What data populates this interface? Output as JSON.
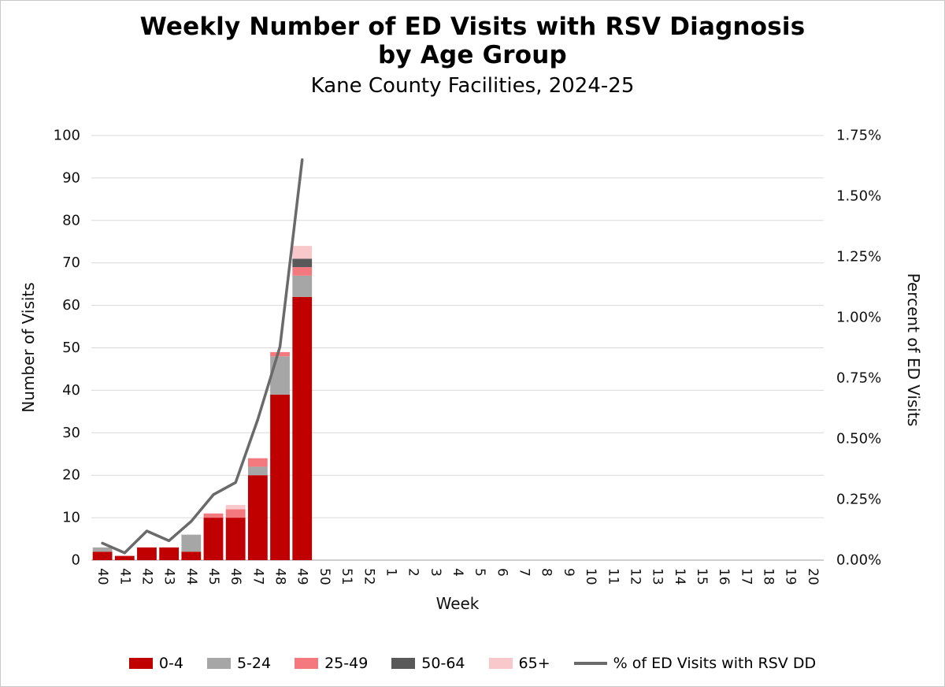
{
  "title": {
    "line1": "Weekly Number of ED Visits with RSV Diagnosis",
    "line2": "by Age Group",
    "subtitle": "Kane County Facilities, 2024-25"
  },
  "axes": {
    "x_label": "Week",
    "y_left_label": "Number of Visits",
    "y_right_label": "Percent of ED Visits"
  },
  "chart_data": {
    "type": "bar",
    "stacked": true,
    "grid": true,
    "legend_position": "bottom",
    "categories": [
      "40",
      "41",
      "42",
      "43",
      "44",
      "45",
      "46",
      "47",
      "48",
      "49",
      "50",
      "51",
      "52",
      "1",
      "2",
      "3",
      "4",
      "5",
      "6",
      "7",
      "8",
      "9",
      "10",
      "11",
      "12",
      "13",
      "14",
      "15",
      "16",
      "17",
      "18",
      "19",
      "20"
    ],
    "series": [
      {
        "name": "0-4",
        "color": "#C00000",
        "values": [
          2,
          1,
          3,
          3,
          2,
          10,
          10,
          20,
          39,
          62,
          0,
          0,
          0,
          0,
          0,
          0,
          0,
          0,
          0,
          0,
          0,
          0,
          0,
          0,
          0,
          0,
          0,
          0,
          0,
          0,
          0,
          0,
          0
        ]
      },
      {
        "name": "5-24",
        "color": "#A6A6A6",
        "values": [
          1,
          0,
          0,
          0,
          4,
          0,
          0,
          2,
          9,
          5,
          0,
          0,
          0,
          0,
          0,
          0,
          0,
          0,
          0,
          0,
          0,
          0,
          0,
          0,
          0,
          0,
          0,
          0,
          0,
          0,
          0,
          0,
          0
        ]
      },
      {
        "name": "25-49",
        "color": "#F4797E",
        "values": [
          0,
          0,
          0,
          0,
          0,
          1,
          2,
          2,
          1,
          2,
          0,
          0,
          0,
          0,
          0,
          0,
          0,
          0,
          0,
          0,
          0,
          0,
          0,
          0,
          0,
          0,
          0,
          0,
          0,
          0,
          0,
          0,
          0
        ]
      },
      {
        "name": "50-64",
        "color": "#595959",
        "values": [
          0,
          0,
          0,
          0,
          0,
          0,
          0,
          0,
          0,
          2,
          0,
          0,
          0,
          0,
          0,
          0,
          0,
          0,
          0,
          0,
          0,
          0,
          0,
          0,
          0,
          0,
          0,
          0,
          0,
          0,
          0,
          0,
          0
        ]
      },
      {
        "name": "65+",
        "color": "#F8C8CB",
        "values": [
          0,
          0,
          0,
          0,
          0,
          0,
          1,
          0,
          0,
          3,
          0,
          0,
          0,
          0,
          0,
          0,
          0,
          0,
          0,
          0,
          0,
          0,
          0,
          0,
          0,
          0,
          0,
          0,
          0,
          0,
          0,
          0,
          0
        ]
      }
    ],
    "line_series": {
      "name": "% of ED Visits with RSV DD",
      "color": "#6A6A6A",
      "axis": "right",
      "values": [
        0.07,
        0.03,
        0.12,
        0.08,
        0.16,
        0.27,
        0.32,
        0.58,
        0.88,
        1.65,
        null,
        null,
        null,
        null,
        null,
        null,
        null,
        null,
        null,
        null,
        null,
        null,
        null,
        null,
        null,
        null,
        null,
        null,
        null,
        null,
        null,
        null,
        null
      ]
    },
    "ylim_left": [
      0,
      100
    ],
    "ytick_step_left": 10,
    "ylim_right_percent": [
      0,
      1.75
    ],
    "ytick_step_right_percent": 0.25
  }
}
